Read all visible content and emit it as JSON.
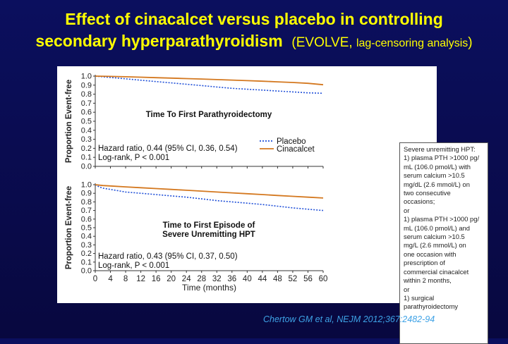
{
  "slide": {
    "title_line1": "Effect of cinacalcet versus placebo in controlling",
    "title_line2": "secondary hyperparathyroidism",
    "title_paren": "(EVOLVE, ",
    "title_paren_sub": "lag-censoring analysis",
    "title_paren_close": ")",
    "citation": "Chertow GM et al, NEJM 2012;367:2482-94",
    "colors": {
      "background": "#0b0f5e",
      "title": "#ffff00",
      "citation": "#3ea2e6",
      "placebo": "#1f4fd8",
      "cinacalcet": "#d4781f"
    }
  },
  "notes_box": {
    "lines": [
      "Severe unremitting HPT:",
      "1) plasma PTH >1000 pg/\nmL (106.0 pmol/L) with\nserum calcium >10.5\nmg/dL (2.6 mmol/L) on\ntwo consecutive\noccasions;",
      "or",
      "1) plasma PTH >1000 pg/\nmL (106.0 pmol/L) and\nserum calcium >10.5\nmg/L (2.6 mmol/L) on\none occasion with\nprescription of\ncommercial cinacalcet\nwithin 2 months,",
      "or",
      "1) surgical\nparathyroidectomy"
    ]
  },
  "chart_data": [
    {
      "type": "line",
      "title": "Time To First Parathyroidectomy",
      "ylabel": "Proportion Event-free",
      "xlabel": "",
      "xlim": [
        0,
        60
      ],
      "ylim": [
        0,
        1.0
      ],
      "x_ticks": [
        0,
        4,
        8,
        12,
        16,
        20,
        24,
        28,
        32,
        36,
        40,
        44,
        48,
        52,
        56,
        60
      ],
      "y_ticks": [
        0.0,
        0.1,
        0.2,
        0.3,
        0.4,
        0.5,
        0.6,
        0.7,
        0.8,
        0.9,
        1.0
      ],
      "y_tick_labels": [
        "0.0",
        "0.1",
        "0.2",
        "0.3",
        "0.4",
        "0.5",
        "0.6",
        "0.7",
        "0.8",
        "0.9",
        "1.0"
      ],
      "legend": "right",
      "annotation_lines": [
        "Hazard ratio, 0.44 (95% CI, 0.36, 0.54)",
        "Log-rank, P < 0.001"
      ],
      "series": [
        {
          "name": "Placebo",
          "style": "dotted",
          "x": [
            0,
            4,
            8,
            12,
            16,
            20,
            24,
            28,
            32,
            36,
            40,
            44,
            48,
            52,
            56,
            60
          ],
          "values": [
            1.0,
            0.985,
            0.97,
            0.955,
            0.94,
            0.925,
            0.91,
            0.895,
            0.88,
            0.865,
            0.855,
            0.845,
            0.835,
            0.825,
            0.815,
            0.81
          ]
        },
        {
          "name": "Cinacalcet",
          "style": "solid",
          "x": [
            0,
            4,
            8,
            12,
            16,
            20,
            24,
            28,
            32,
            36,
            40,
            44,
            48,
            52,
            56,
            60
          ],
          "values": [
            1.0,
            0.997,
            0.993,
            0.988,
            0.983,
            0.978,
            0.973,
            0.968,
            0.962,
            0.956,
            0.95,
            0.944,
            0.937,
            0.93,
            0.92,
            0.905
          ]
        }
      ]
    },
    {
      "type": "line",
      "title": "Time to First Episode of Severe Unremitting HPT",
      "ylabel": "Proportion Event-free",
      "xlabel": "Time (months)",
      "xlim": [
        0,
        60
      ],
      "ylim": [
        0,
        1.0
      ],
      "x_ticks": [
        0,
        4,
        8,
        12,
        16,
        20,
        24,
        28,
        32,
        36,
        40,
        44,
        48,
        52,
        56,
        60
      ],
      "y_ticks": [
        0.0,
        0.1,
        0.2,
        0.3,
        0.4,
        0.5,
        0.6,
        0.7,
        0.8,
        0.9,
        1.0
      ],
      "y_tick_labels": [
        "0.0",
        "0.1",
        "0.2",
        "0.3",
        "0.4",
        "0.5",
        "0.6",
        "0.7",
        "0.8",
        "0.9",
        "1.0"
      ],
      "annotation_lines": [
        "Hazard ratio, 0.43 (95% CI, 0.37, 0.50)",
        "Log-rank, P < 0.001"
      ],
      "series": [
        {
          "name": "Placebo",
          "style": "dotted",
          "x": [
            0,
            1,
            2,
            4,
            8,
            12,
            16,
            20,
            24,
            28,
            32,
            36,
            40,
            44,
            48,
            52,
            56,
            60
          ],
          "values": [
            1.0,
            0.975,
            0.96,
            0.945,
            0.915,
            0.9,
            0.885,
            0.87,
            0.855,
            0.835,
            0.815,
            0.8,
            0.785,
            0.77,
            0.75,
            0.73,
            0.715,
            0.7
          ]
        },
        {
          "name": "Cinacalcet",
          "style": "solid",
          "x": [
            0,
            2,
            4,
            8,
            12,
            16,
            20,
            24,
            28,
            32,
            36,
            40,
            44,
            48,
            52,
            56,
            60
          ],
          "values": [
            1.0,
            0.99,
            0.985,
            0.975,
            0.965,
            0.955,
            0.945,
            0.935,
            0.925,
            0.915,
            0.905,
            0.895,
            0.885,
            0.875,
            0.865,
            0.855,
            0.845
          ]
        }
      ]
    }
  ]
}
